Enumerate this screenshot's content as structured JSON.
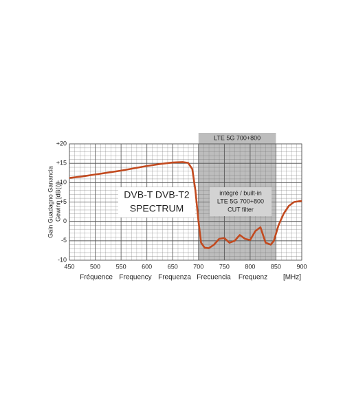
{
  "chart_data": {
    "type": "line",
    "y_label": [
      "Gain  Guadagno  Ganancia",
      "Gewinn  [dB(i)]"
    ],
    "x_label": [
      "Fréquence",
      "Frequency",
      "Frequenza",
      "Frecuencia",
      "Frequenz",
      "[MHz]"
    ],
    "x": [
      450,
      475,
      500,
      525,
      550,
      575,
      600,
      625,
      650,
      670,
      680,
      688,
      694,
      700,
      705,
      712,
      720,
      730,
      740,
      750,
      760,
      770,
      780,
      790,
      800,
      810,
      820,
      830,
      840,
      846,
      855,
      865,
      875,
      885,
      900
    ],
    "series": [
      {
        "name": "gain",
        "color": "#c24a1f",
        "values": [
          11.2,
          11.6,
          12.1,
          12.6,
          13.1,
          13.7,
          14.3,
          14.8,
          15.2,
          15.3,
          15.1,
          13.5,
          8,
          0,
          -5.5,
          -6.8,
          -6.9,
          -6,
          -4.5,
          -4.3,
          -5.5,
          -5,
          -3.5,
          -4.5,
          -4.8,
          -2.5,
          -1.5,
          -5.5,
          -6,
          -5,
          -1,
          2,
          4,
          5,
          5.3
        ]
      }
    ],
    "xlim": [
      450,
      900
    ],
    "xticks": [
      450,
      500,
      550,
      600,
      650,
      700,
      750,
      800,
      850,
      900
    ],
    "ylim": [
      -10,
      20
    ],
    "yticks": [
      {
        "value": 20,
        "label": "+20"
      },
      {
        "value": 15,
        "label": "+15"
      },
      {
        "value": 10,
        "label": "+10"
      },
      {
        "value": 5,
        "label": "+5"
      },
      0,
      -5,
      -10
    ],
    "band": {
      "label": "LTE 5G 700+800",
      "range": [
        700,
        850
      ],
      "color": "#bdbdbd"
    },
    "annotations": [
      {
        "lines": [
          "DVB-T  DVB-T2",
          "SPECTRUM"
        ]
      },
      {
        "lines": [
          "intégré / built-in",
          "LTE 5G 700+800",
          "CUT filter"
        ]
      }
    ],
    "grid": true
  }
}
